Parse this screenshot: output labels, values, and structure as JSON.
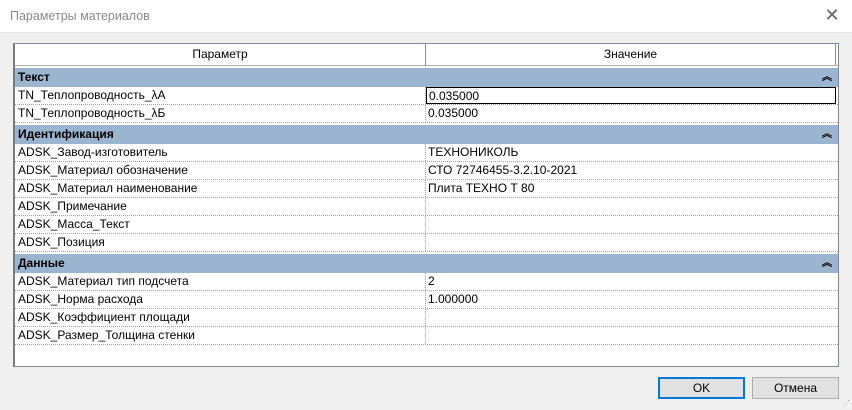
{
  "window": {
    "title": "Параметры материалов"
  },
  "table": {
    "headers": [
      "Параметр",
      "Значение"
    ],
    "groups": [
      {
        "name": "Текст",
        "rows": [
          {
            "param": "TN_Теплопроводность_λА",
            "value": "0.035000"
          },
          {
            "param": "TN_Теплопроводность_λБ",
            "value": "0.035000"
          }
        ]
      },
      {
        "name": "Идентификация",
        "rows": [
          {
            "param": "ADSK_Завод-изготовитель",
            "value": "ТЕХНОНИКОЛЬ"
          },
          {
            "param": "ADSK_Материал обозначение",
            "value": "СТО 72746455-3.2.10-2021"
          },
          {
            "param": "ADSK_Материал наименование",
            "value": "Плита ТЕХНО Т 80"
          },
          {
            "param": "ADSK_Примечание",
            "value": ""
          },
          {
            "param": "ADSK_Масса_Текст",
            "value": ""
          },
          {
            "param": "ADSK_Позиция",
            "value": ""
          }
        ]
      },
      {
        "name": "Данные",
        "rows": [
          {
            "param": "ADSK_Материал тип подсчета",
            "value": "2"
          },
          {
            "param": "ADSK_Норма расхода",
            "value": "1.000000"
          },
          {
            "param": "ADSK_Коэффициент площади",
            "value": ""
          },
          {
            "param": "ADSK_Размер_Толщина стенки",
            "value": ""
          }
        ]
      }
    ]
  },
  "buttons": {
    "ok": "OK",
    "cancel": "Отмена"
  },
  "icons": {
    "collapse": "double-chevron-up-icon",
    "close": "close-icon"
  }
}
